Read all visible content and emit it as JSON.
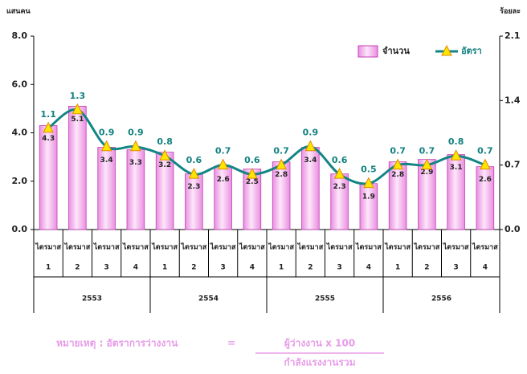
{
  "chart_data": {
    "type": "bar_line",
    "y_label": "แสนคน",
    "y2_label": "ร้อยละ",
    "quarter_label": "ไตรมาส",
    "categories": [
      "1",
      "2",
      "3",
      "4",
      "1",
      "2",
      "3",
      "4",
      "1",
      "2",
      "3",
      "4",
      "1",
      "2",
      "3",
      "4"
    ],
    "groups": [
      "2553",
      "2554",
      "2555",
      "2556"
    ],
    "series": [
      {
        "name": "จำนวน",
        "type": "bar",
        "color": "#f7c2ef",
        "values": [
          4.3,
          5.1,
          3.4,
          3.3,
          3.2,
          2.3,
          2.6,
          2.5,
          2.8,
          3.4,
          2.3,
          1.9,
          2.8,
          2.9,
          3.1,
          2.6
        ]
      },
      {
        "name": "อัตรา",
        "type": "line",
        "axis": "y2",
        "color": "#138585",
        "values": [
          1.1,
          1.3,
          0.9,
          0.9,
          0.8,
          0.6,
          0.7,
          0.6,
          0.7,
          0.9,
          0.6,
          0.5,
          0.7,
          0.7,
          0.8,
          0.7
        ]
      }
    ],
    "ylim": [
      0,
      8
    ],
    "yticks": [
      {
        "value": 0,
        "label": "0.0"
      },
      {
        "value": 2,
        "label": "2.0"
      },
      {
        "value": 4,
        "label": "4.0"
      },
      {
        "value": 6,
        "label": "6.0"
      },
      {
        "value": 8,
        "label": "8.0"
      }
    ],
    "y2lim": [
      0,
      2.1
    ],
    "y2ticks": [
      {
        "value": 0,
        "label": "0.0"
      },
      0.7,
      1.4,
      2.1
    ],
    "grid": false,
    "legend": "upper right",
    "note": {
      "label": "หมายเหตุ : อัตราการว่างงาน",
      "equals": "=",
      "numerator": "ผู้ว่างงาน    x   100",
      "denominator": "กำลังแรงงานรวม"
    }
  }
}
